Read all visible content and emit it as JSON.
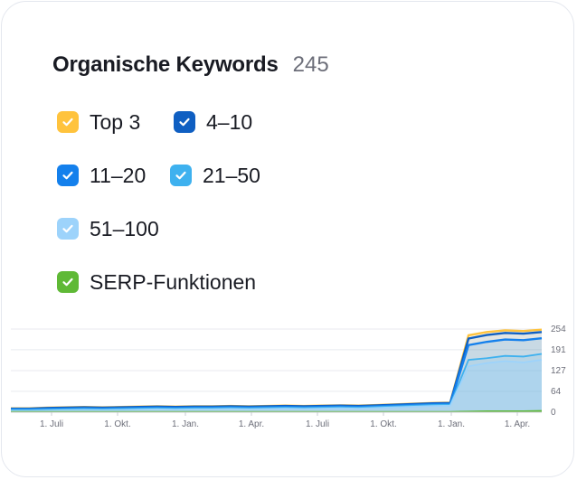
{
  "widget": {
    "title": "Organische Keywords",
    "count": "245"
  },
  "legend": [
    {
      "label": "Top 3",
      "color": "#ffc33d",
      "checked": true
    },
    {
      "label": "4–10",
      "color": "#0f5fc2",
      "checked": true
    },
    {
      "label": "11–20",
      "color": "#1480ec",
      "checked": true
    },
    {
      "label": "21–50",
      "color": "#3eb1ef",
      "checked": true
    },
    {
      "label": "51–100",
      "color": "#9dd3fb",
      "checked": true
    },
    {
      "label": "SERP-Funktionen",
      "color": "#5fb936",
      "checked": true
    }
  ],
  "chart_data": {
    "type": "area",
    "x_tick_labels": [
      "1. Juli",
      "1. Okt.",
      "1. Jan.",
      "1. Apr.",
      "1. Juli",
      "1. Okt.",
      "1. Jan.",
      "1. Apr."
    ],
    "y_tick_labels": [
      "254",
      "191",
      "127",
      "64",
      "0"
    ],
    "ylim": [
      0,
      254
    ],
    "grid": true,
    "series": [
      {
        "name": "Top 3",
        "color": "#ffc33d",
        "values": [
          12,
          12,
          14,
          15,
          16,
          15,
          16,
          17,
          18,
          17,
          18,
          18,
          19,
          18,
          19,
          20,
          19,
          20,
          21,
          20,
          22,
          24,
          26,
          28,
          29,
          235,
          245,
          250,
          248,
          252
        ]
      },
      {
        "name": "4–10",
        "color": "#0f5fc2",
        "values": [
          11,
          11,
          13,
          14,
          15,
          14,
          15,
          16,
          17,
          16,
          17,
          17,
          18,
          17,
          18,
          19,
          18,
          19,
          20,
          19,
          21,
          23,
          25,
          27,
          28,
          225,
          236,
          242,
          240,
          245
        ]
      },
      {
        "name": "11–20",
        "color": "#1480ec",
        "values": [
          9,
          9,
          10,
          11,
          12,
          11,
          12,
          13,
          14,
          13,
          14,
          14,
          15,
          14,
          15,
          16,
          15,
          16,
          17,
          16,
          18,
          20,
          22,
          24,
          25,
          205,
          215,
          222,
          220,
          226
        ]
      },
      {
        "name": "21–50",
        "color": "#3eb1ef",
        "values": [
          7,
          7,
          8,
          9,
          10,
          9,
          10,
          11,
          12,
          11,
          12,
          12,
          13,
          12,
          13,
          14,
          13,
          14,
          15,
          14,
          16,
          18,
          20,
          22,
          23,
          160,
          165,
          172,
          170,
          178
        ]
      },
      {
        "name": "51–100",
        "color": "#9dd3fb",
        "values": [
          4,
          4,
          5,
          6,
          7,
          6,
          7,
          8,
          9,
          8,
          9,
          9,
          10,
          9,
          10,
          11,
          10,
          11,
          12,
          11,
          13,
          15,
          17,
          19,
          20,
          140,
          150,
          156,
          152,
          160
        ]
      },
      {
        "name": "SERP-Funktionen",
        "color": "#5fb936",
        "values": [
          1,
          1,
          1,
          1,
          1,
          1,
          1,
          1,
          1,
          1,
          1,
          1,
          1,
          1,
          1,
          1,
          1,
          1,
          1,
          1,
          1,
          1,
          1,
          1,
          1,
          2,
          3,
          3,
          3,
          4
        ]
      }
    ]
  }
}
